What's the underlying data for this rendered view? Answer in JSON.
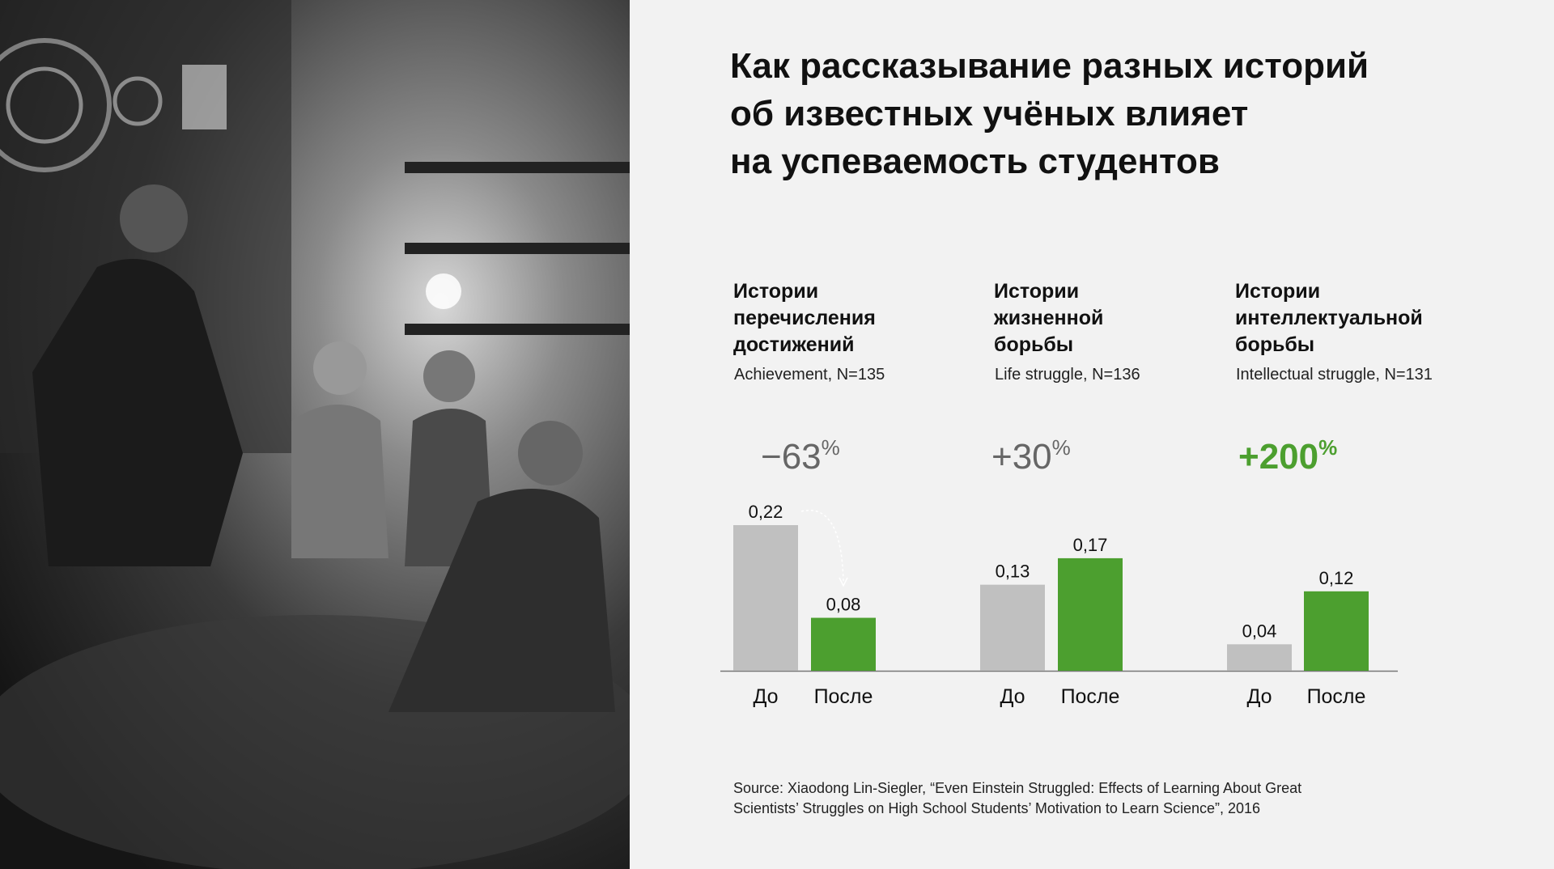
{
  "title_lines": [
    "Как рассказывание разных историй",
    "об известных учёных влияет",
    "на успеваемость студентов"
  ],
  "chart_data": {
    "type": "bar",
    "groups": [
      {
        "title_lines": [
          "Истории",
          "перечисления",
          "достижений"
        ],
        "subtitle": "Achievement, N=135",
        "change": "−63",
        "change_unit": "%",
        "highlight": false,
        "values": [
          0.22,
          0.08
        ],
        "value_labels": [
          "0,22",
          "0,08"
        ]
      },
      {
        "title_lines": [
          "Истории",
          "жизненной",
          "борьбы"
        ],
        "subtitle": "Life struggle, N=136",
        "change": "+30",
        "change_unit": "%",
        "highlight": false,
        "values": [
          0.13,
          0.17
        ],
        "value_labels": [
          "0,13",
          "0,17"
        ]
      },
      {
        "title_lines": [
          "Истории",
          "интеллектуальной",
          "борьбы"
        ],
        "subtitle": "Intellectual struggle, N=131",
        "change": "+200",
        "change_unit": "%",
        "highlight": true,
        "values": [
          0.04,
          0.12
        ],
        "value_labels": [
          "0,04",
          "0,12"
        ]
      }
    ],
    "categories": [
      "До",
      "После"
    ],
    "colors": {
      "before": "#c0c0c0",
      "after": "#4c9f2f",
      "highlight": "#4c9f2f"
    },
    "ylim": [
      0,
      0.22
    ],
    "grid": false
  },
  "source_lines": [
    "Source: Xiaodong Lin-Siegler, “Even Einstein Struggled: Effects of Learning About Great",
    "Scientists’ Struggles on High School Students’ Motivation to Learn Science”, 2016"
  ]
}
